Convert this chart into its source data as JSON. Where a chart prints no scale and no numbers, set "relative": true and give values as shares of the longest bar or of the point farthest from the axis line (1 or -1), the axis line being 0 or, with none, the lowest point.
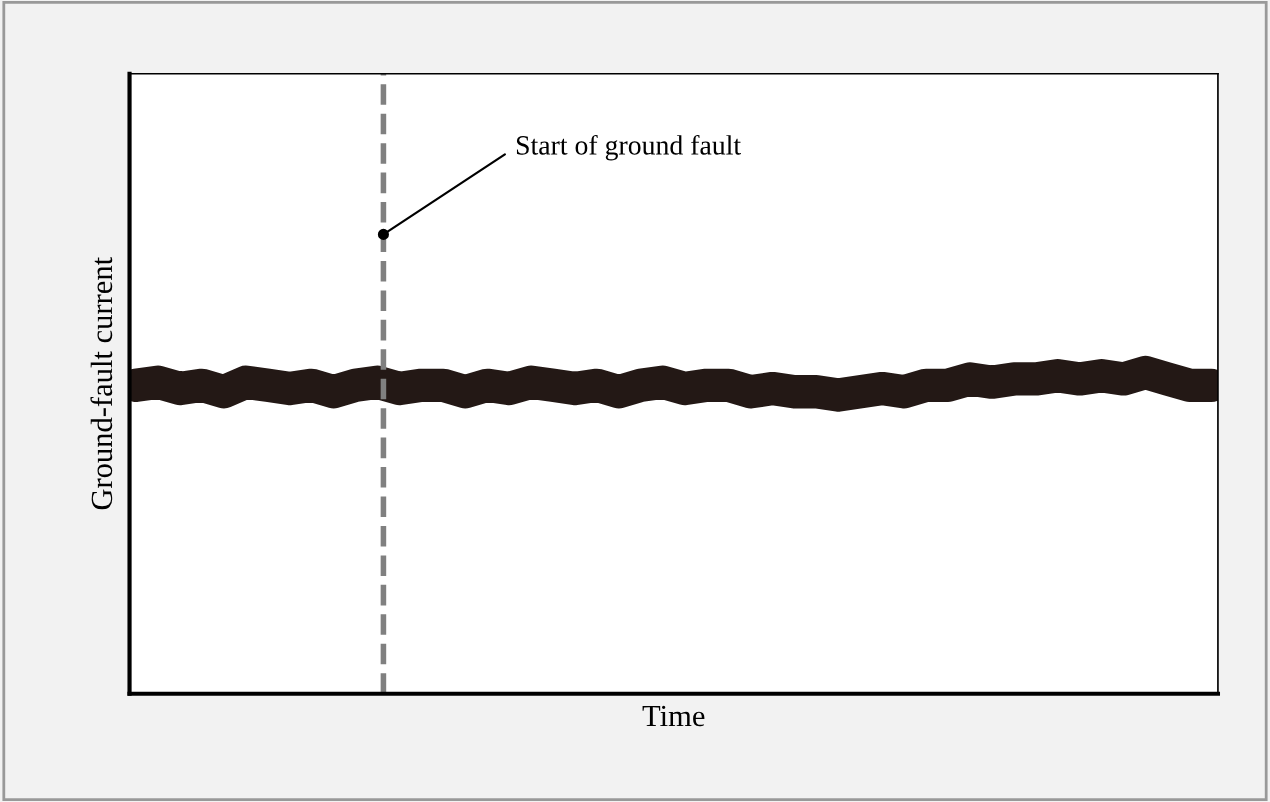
{
  "chart_data": {
    "type": "line",
    "relative": true,
    "xlabel": "Time",
    "ylabel": "Ground-fault current",
    "categories": [
      null,
      null,
      null,
      null,
      null,
      null,
      null,
      null,
      null,
      null,
      null,
      null,
      null,
      null,
      null,
      null,
      null,
      null,
      null,
      null,
      null,
      null,
      null,
      null,
      null,
      null,
      null,
      null,
      null,
      null,
      null,
      null,
      null,
      null,
      null,
      null,
      null,
      null,
      null,
      null,
      null,
      null,
      null,
      null,
      null,
      null,
      null,
      null,
      null,
      null
    ],
    "series": [
      {
        "color": "#231815",
        "values": [
          0.96,
          0.97,
          0.95,
          0.96,
          0.94,
          0.97,
          0.96,
          0.95,
          0.96,
          0.94,
          0.96,
          0.97,
          0.95,
          0.96,
          0.96,
          0.94,
          0.96,
          0.95,
          0.97,
          0.96,
          0.95,
          0.96,
          0.94,
          0.96,
          0.97,
          0.95,
          0.96,
          0.96,
          0.94,
          0.95,
          0.94,
          0.94,
          0.93,
          0.94,
          0.95,
          0.94,
          0.96,
          0.96,
          0.98,
          0.97,
          0.98,
          0.98,
          0.99,
          0.98,
          0.99,
          0.98,
          1.0,
          0.98,
          0.96,
          0.96
        ]
      }
    ],
    "annotations": [
      "Start of ground fault"
    ],
    "line_style": "solid"
  }
}
